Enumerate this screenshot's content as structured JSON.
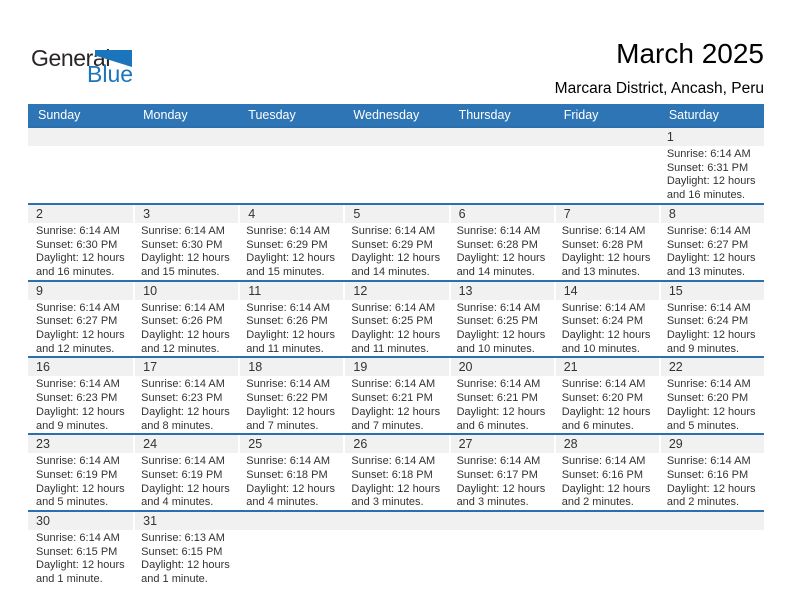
{
  "logo": {
    "word1": "General",
    "word2": "Blue"
  },
  "header": {
    "month_title": "March 2025",
    "location": "Marcara District, Ancash, Peru"
  },
  "colors": {
    "header_bar": "#2E75B5",
    "week_border": "#2C6FAE",
    "day_number_strip": "#F1F1F1",
    "cell_text": "#333333",
    "logo_blue": "#1B75BC"
  },
  "calendar": {
    "day_names": [
      "Sunday",
      "Monday",
      "Tuesday",
      "Wednesday",
      "Thursday",
      "Friday",
      "Saturday"
    ],
    "labels": {
      "sunrise": "Sunrise:",
      "sunset": "Sunset:",
      "daylight": "Daylight:"
    },
    "weeks": [
      [
        null,
        null,
        null,
        null,
        null,
        null,
        {
          "day": 1,
          "sunrise": "6:14 AM",
          "sunset": "6:31 PM",
          "daylight_line1": "12 hours",
          "daylight_line2": "and 16 minutes."
        }
      ],
      [
        {
          "day": 2,
          "sunrise": "6:14 AM",
          "sunset": "6:30 PM",
          "daylight_line1": "12 hours",
          "daylight_line2": "and 16 minutes."
        },
        {
          "day": 3,
          "sunrise": "6:14 AM",
          "sunset": "6:30 PM",
          "daylight_line1": "12 hours",
          "daylight_line2": "and 15 minutes."
        },
        {
          "day": 4,
          "sunrise": "6:14 AM",
          "sunset": "6:29 PM",
          "daylight_line1": "12 hours",
          "daylight_line2": "and 15 minutes."
        },
        {
          "day": 5,
          "sunrise": "6:14 AM",
          "sunset": "6:29 PM",
          "daylight_line1": "12 hours",
          "daylight_line2": "and 14 minutes."
        },
        {
          "day": 6,
          "sunrise": "6:14 AM",
          "sunset": "6:28 PM",
          "daylight_line1": "12 hours",
          "daylight_line2": "and 14 minutes."
        },
        {
          "day": 7,
          "sunrise": "6:14 AM",
          "sunset": "6:28 PM",
          "daylight_line1": "12 hours",
          "daylight_line2": "and 13 minutes."
        },
        {
          "day": 8,
          "sunrise": "6:14 AM",
          "sunset": "6:27 PM",
          "daylight_line1": "12 hours",
          "daylight_line2": "and 13 minutes."
        }
      ],
      [
        {
          "day": 9,
          "sunrise": "6:14 AM",
          "sunset": "6:27 PM",
          "daylight_line1": "12 hours",
          "daylight_line2": "and 12 minutes."
        },
        {
          "day": 10,
          "sunrise": "6:14 AM",
          "sunset": "6:26 PM",
          "daylight_line1": "12 hours",
          "daylight_line2": "and 12 minutes."
        },
        {
          "day": 11,
          "sunrise": "6:14 AM",
          "sunset": "6:26 PM",
          "daylight_line1": "12 hours",
          "daylight_line2": "and 11 minutes."
        },
        {
          "day": 12,
          "sunrise": "6:14 AM",
          "sunset": "6:25 PM",
          "daylight_line1": "12 hours",
          "daylight_line2": "and 11 minutes."
        },
        {
          "day": 13,
          "sunrise": "6:14 AM",
          "sunset": "6:25 PM",
          "daylight_line1": "12 hours",
          "daylight_line2": "and 10 minutes."
        },
        {
          "day": 14,
          "sunrise": "6:14 AM",
          "sunset": "6:24 PM",
          "daylight_line1": "12 hours",
          "daylight_line2": "and 10 minutes."
        },
        {
          "day": 15,
          "sunrise": "6:14 AM",
          "sunset": "6:24 PM",
          "daylight_line1": "12 hours",
          "daylight_line2": "and 9 minutes."
        }
      ],
      [
        {
          "day": 16,
          "sunrise": "6:14 AM",
          "sunset": "6:23 PM",
          "daylight_line1": "12 hours",
          "daylight_line2": "and 9 minutes."
        },
        {
          "day": 17,
          "sunrise": "6:14 AM",
          "sunset": "6:23 PM",
          "daylight_line1": "12 hours",
          "daylight_line2": "and 8 minutes."
        },
        {
          "day": 18,
          "sunrise": "6:14 AM",
          "sunset": "6:22 PM",
          "daylight_line1": "12 hours",
          "daylight_line2": "and 7 minutes."
        },
        {
          "day": 19,
          "sunrise": "6:14 AM",
          "sunset": "6:21 PM",
          "daylight_line1": "12 hours",
          "daylight_line2": "and 7 minutes."
        },
        {
          "day": 20,
          "sunrise": "6:14 AM",
          "sunset": "6:21 PM",
          "daylight_line1": "12 hours",
          "daylight_line2": "and 6 minutes."
        },
        {
          "day": 21,
          "sunrise": "6:14 AM",
          "sunset": "6:20 PM",
          "daylight_line1": "12 hours",
          "daylight_line2": "and 6 minutes."
        },
        {
          "day": 22,
          "sunrise": "6:14 AM",
          "sunset": "6:20 PM",
          "daylight_line1": "12 hours",
          "daylight_line2": "and 5 minutes."
        }
      ],
      [
        {
          "day": 23,
          "sunrise": "6:14 AM",
          "sunset": "6:19 PM",
          "daylight_line1": "12 hours",
          "daylight_line2": "and 5 minutes."
        },
        {
          "day": 24,
          "sunrise": "6:14 AM",
          "sunset": "6:19 PM",
          "daylight_line1": "12 hours",
          "daylight_line2": "and 4 minutes."
        },
        {
          "day": 25,
          "sunrise": "6:14 AM",
          "sunset": "6:18 PM",
          "daylight_line1": "12 hours",
          "daylight_line2": "and 4 minutes."
        },
        {
          "day": 26,
          "sunrise": "6:14 AM",
          "sunset": "6:18 PM",
          "daylight_line1": "12 hours",
          "daylight_line2": "and 3 minutes."
        },
        {
          "day": 27,
          "sunrise": "6:14 AM",
          "sunset": "6:17 PM",
          "daylight_line1": "12 hours",
          "daylight_line2": "and 3 minutes."
        },
        {
          "day": 28,
          "sunrise": "6:14 AM",
          "sunset": "6:16 PM",
          "daylight_line1": "12 hours",
          "daylight_line2": "and 2 minutes."
        },
        {
          "day": 29,
          "sunrise": "6:14 AM",
          "sunset": "6:16 PM",
          "daylight_line1": "12 hours",
          "daylight_line2": "and 2 minutes."
        }
      ],
      [
        {
          "day": 30,
          "sunrise": "6:14 AM",
          "sunset": "6:15 PM",
          "daylight_line1": "12 hours",
          "daylight_line2": "and 1 minute."
        },
        {
          "day": 31,
          "sunrise": "6:13 AM",
          "sunset": "6:15 PM",
          "daylight_line1": "12 hours",
          "daylight_line2": "and 1 minute."
        },
        null,
        null,
        null,
        null,
        null
      ]
    ]
  }
}
